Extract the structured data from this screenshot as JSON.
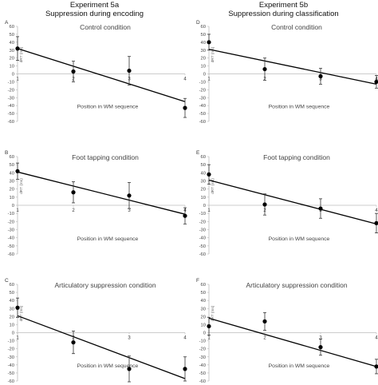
{
  "header": {
    "left": [
      "Experiment 5a",
      "Suppression during encoding"
    ],
    "right": [
      "Experiment 5b",
      "Suppression during classification"
    ]
  },
  "common": {
    "ylabel": "dRT (ms)",
    "xlabel": "Position in WM  sequence",
    "yticks": [
      60,
      50,
      40,
      30,
      20,
      10,
      0,
      -10,
      -20,
      -30,
      -40,
      -50,
      -60
    ],
    "xticks": [
      "1",
      "2",
      "3",
      "4"
    ],
    "ylim": [
      -60,
      60
    ],
    "xlim": [
      1,
      4
    ]
  },
  "chart_data": [
    {
      "type": "scatter",
      "panel": "A",
      "title": "Control condition",
      "column": "left",
      "xlabel": "Position in WM  sequence",
      "ylabel": "dRT (ms)",
      "x": [
        1,
        2,
        3,
        4
      ],
      "y": [
        32,
        3,
        4,
        -43
      ],
      "err": [
        15,
        13,
        18,
        12
      ],
      "fit": {
        "y1": 32,
        "y4": -35
      }
    },
    {
      "type": "scatter",
      "panel": "D",
      "title": "Control condition",
      "column": "right",
      "xlabel": "Position in WM  sequence",
      "ylabel": "dRT (ms)",
      "x": [
        1,
        2,
        3,
        4
      ],
      "y": [
        40,
        6,
        -3,
        -10
      ],
      "err": [
        10,
        14,
        10,
        8
      ],
      "fit": {
        "y1": 31,
        "y4": -13
      }
    },
    {
      "type": "scatter",
      "panel": "B",
      "title": "Foot tapping condition",
      "column": "left",
      "xlabel": "Position in WM  sequence",
      "ylabel": "dRT (ms)",
      "x": [
        1,
        2,
        3,
        4
      ],
      "y": [
        42,
        16,
        12,
        -13
      ],
      "err": [
        10,
        13,
        16,
        10
      ],
      "fit": {
        "y1": 41,
        "y4": -11
      }
    },
    {
      "type": "scatter",
      "panel": "E",
      "title": "Foot tapping condition",
      "column": "right",
      "xlabel": "Position in WM  sequence",
      "ylabel": "dRT (ms)",
      "x": [
        1,
        2,
        3,
        4
      ],
      "y": [
        38,
        1,
        -4,
        -22
      ],
      "err": [
        12,
        13,
        12,
        12
      ],
      "fit": {
        "y1": 31,
        "y4": -23
      }
    },
    {
      "type": "scatter",
      "panel": "C",
      "title": "Articulatory suppression condition",
      "column": "left",
      "xlabel": "Position in WM  sequence",
      "ylabel": "dRT (ms)",
      "x": [
        1,
        2,
        3,
        4
      ],
      "y": [
        31,
        -12,
        -45,
        -45
      ],
      "err": [
        12,
        14,
        16,
        15
      ],
      "fit": {
        "y1": 21,
        "y4": -57
      }
    },
    {
      "type": "scatter",
      "panel": "F",
      "title": "Articulatory suppression  condition",
      "column": "right",
      "xlabel": "Position in WM sequence",
      "ylabel": "dRT (ms)",
      "x": [
        1,
        2,
        3,
        4
      ],
      "y": [
        8,
        14,
        -18,
        -42
      ],
      "err": [
        11,
        11,
        10,
        9
      ],
      "fit": {
        "y1": 18,
        "y4": -42
      }
    }
  ]
}
